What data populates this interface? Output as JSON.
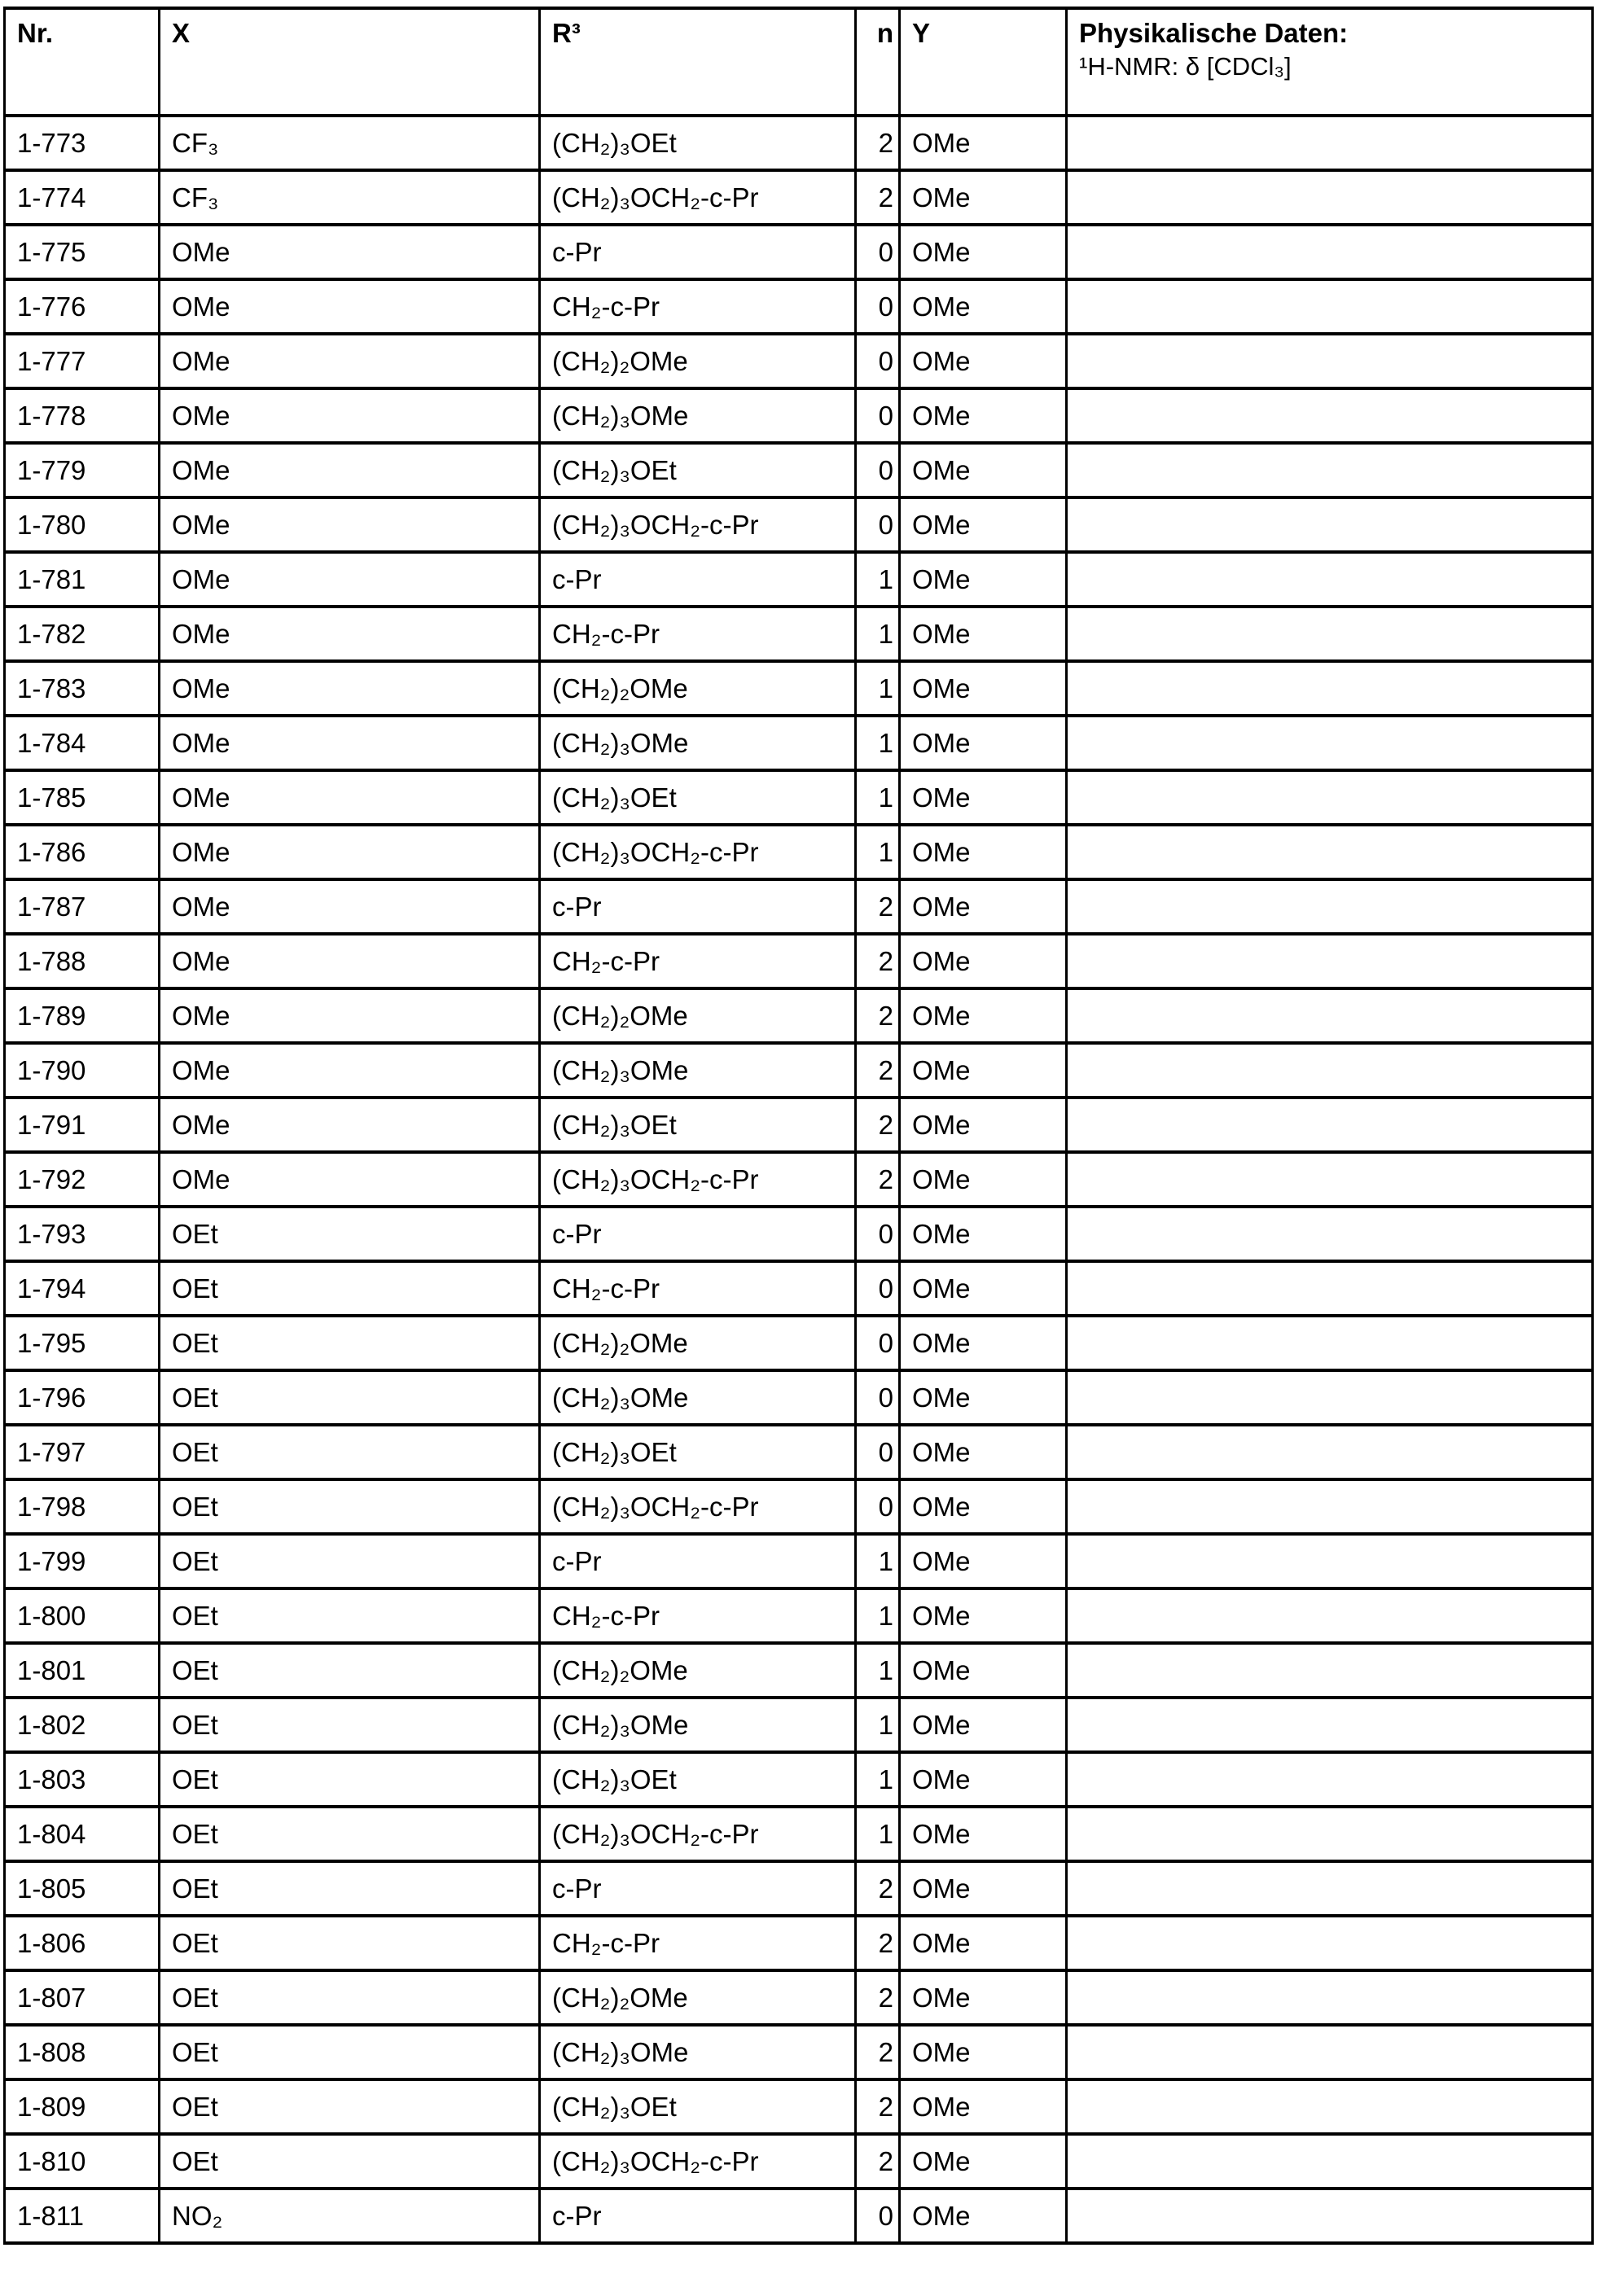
{
  "headers": {
    "nr": "Nr.",
    "x": "X",
    "r3": "R³",
    "n": "n",
    "y": "Y",
    "phys_title": "Physikalische Daten:",
    "phys_sub": "¹H-NMR: δ [CDCl₃]"
  },
  "rows": [
    {
      "nr": "1-773",
      "x": "CF₃",
      "r3": "(CH₂)₃OEt",
      "n": "2",
      "y": "OMe",
      "phys": ""
    },
    {
      "nr": "1-774",
      "x": "CF₃",
      "r3": "(CH₂)₃OCH₂-c-Pr",
      "n": "2",
      "y": "OMe",
      "phys": ""
    },
    {
      "nr": "1-775",
      "x": "OMe",
      "r3": "c-Pr",
      "n": "0",
      "y": "OMe",
      "phys": ""
    },
    {
      "nr": "1-776",
      "x": "OMe",
      "r3": "CH₂-c-Pr",
      "n": "0",
      "y": "OMe",
      "phys": ""
    },
    {
      "nr": "1-777",
      "x": "OMe",
      "r3": "(CH₂)₂OMe",
      "n": "0",
      "y": "OMe",
      "phys": ""
    },
    {
      "nr": "1-778",
      "x": "OMe",
      "r3": "(CH₂)₃OMe",
      "n": "0",
      "y": "OMe",
      "phys": ""
    },
    {
      "nr": "1-779",
      "x": "OMe",
      "r3": "(CH₂)₃OEt",
      "n": "0",
      "y": "OMe",
      "phys": ""
    },
    {
      "nr": "1-780",
      "x": "OMe",
      "r3": "(CH₂)₃OCH₂-c-Pr",
      "n": "0",
      "y": "OMe",
      "phys": ""
    },
    {
      "nr": "1-781",
      "x": "OMe",
      "r3": "c-Pr",
      "n": "1",
      "y": "OMe",
      "phys": ""
    },
    {
      "nr": "1-782",
      "x": "OMe",
      "r3": "CH₂-c-Pr",
      "n": "1",
      "y": "OMe",
      "phys": ""
    },
    {
      "nr": "1-783",
      "x": "OMe",
      "r3": "(CH₂)₂OMe",
      "n": "1",
      "y": "OMe",
      "phys": ""
    },
    {
      "nr": "1-784",
      "x": "OMe",
      "r3": "(CH₂)₃OMe",
      "n": "1",
      "y": "OMe",
      "phys": ""
    },
    {
      "nr": "1-785",
      "x": "OMe",
      "r3": "(CH₂)₃OEt",
      "n": "1",
      "y": "OMe",
      "phys": ""
    },
    {
      "nr": "1-786",
      "x": "OMe",
      "r3": "(CH₂)₃OCH₂-c-Pr",
      "n": "1",
      "y": "OMe",
      "phys": ""
    },
    {
      "nr": "1-787",
      "x": "OMe",
      "r3": "c-Pr",
      "n": "2",
      "y": "OMe",
      "phys": ""
    },
    {
      "nr": "1-788",
      "x": "OMe",
      "r3": "CH₂-c-Pr",
      "n": "2",
      "y": "OMe",
      "phys": ""
    },
    {
      "nr": "1-789",
      "x": "OMe",
      "r3": "(CH₂)₂OMe",
      "n": "2",
      "y": "OMe",
      "phys": ""
    },
    {
      "nr": "1-790",
      "x": "OMe",
      "r3": "(CH₂)₃OMe",
      "n": "2",
      "y": "OMe",
      "phys": ""
    },
    {
      "nr": "1-791",
      "x": "OMe",
      "r3": "(CH₂)₃OEt",
      "n": "2",
      "y": "OMe",
      "phys": ""
    },
    {
      "nr": "1-792",
      "x": "OMe",
      "r3": "(CH₂)₃OCH₂-c-Pr",
      "n": "2",
      "y": "OMe",
      "phys": ""
    },
    {
      "nr": "1-793",
      "x": "OEt",
      "r3": "c-Pr",
      "n": "0",
      "y": "OMe",
      "phys": ""
    },
    {
      "nr": "1-794",
      "x": "OEt",
      "r3": "CH₂-c-Pr",
      "n": "0",
      "y": "OMe",
      "phys": ""
    },
    {
      "nr": "1-795",
      "x": "OEt",
      "r3": "(CH₂)₂OMe",
      "n": "0",
      "y": "OMe",
      "phys": ""
    },
    {
      "nr": "1-796",
      "x": "OEt",
      "r3": "(CH₂)₃OMe",
      "n": "0",
      "y": "OMe",
      "phys": ""
    },
    {
      "nr": "1-797",
      "x": "OEt",
      "r3": "(CH₂)₃OEt",
      "n": "0",
      "y": "OMe",
      "phys": ""
    },
    {
      "nr": "1-798",
      "x": "OEt",
      "r3": "(CH₂)₃OCH₂-c-Pr",
      "n": "0",
      "y": "OMe",
      "phys": ""
    },
    {
      "nr": "1-799",
      "x": "OEt",
      "r3": "c-Pr",
      "n": "1",
      "y": "OMe",
      "phys": ""
    },
    {
      "nr": "1-800",
      "x": "OEt",
      "r3": "CH₂-c-Pr",
      "n": "1",
      "y": "OMe",
      "phys": ""
    },
    {
      "nr": "1-801",
      "x": "OEt",
      "r3": "(CH₂)₂OMe",
      "n": "1",
      "y": "OMe",
      "phys": ""
    },
    {
      "nr": "1-802",
      "x": "OEt",
      "r3": "(CH₂)₃OMe",
      "n": "1",
      "y": "OMe",
      "phys": ""
    },
    {
      "nr": "1-803",
      "x": "OEt",
      "r3": "(CH₂)₃OEt",
      "n": "1",
      "y": "OMe",
      "phys": ""
    },
    {
      "nr": "1-804",
      "x": "OEt",
      "r3": "(CH₂)₃OCH₂-c-Pr",
      "n": "1",
      "y": "OMe",
      "phys": ""
    },
    {
      "nr": "1-805",
      "x": "OEt",
      "r3": "c-Pr",
      "n": "2",
      "y": "OMe",
      "phys": ""
    },
    {
      "nr": "1-806",
      "x": "OEt",
      "r3": "CH₂-c-Pr",
      "n": "2",
      "y": "OMe",
      "phys": ""
    },
    {
      "nr": "1-807",
      "x": "OEt",
      "r3": "(CH₂)₂OMe",
      "n": "2",
      "y": "OMe",
      "phys": ""
    },
    {
      "nr": "1-808",
      "x": "OEt",
      "r3": "(CH₂)₃OMe",
      "n": "2",
      "y": "OMe",
      "phys": ""
    },
    {
      "nr": "1-809",
      "x": "OEt",
      "r3": "(CH₂)₃OEt",
      "n": "2",
      "y": "OMe",
      "phys": ""
    },
    {
      "nr": "1-810",
      "x": "OEt",
      "r3": "(CH₂)₃OCH₂-c-Pr",
      "n": "2",
      "y": "OMe",
      "phys": ""
    },
    {
      "nr": "1-811",
      "x": "NO₂",
      "r3": "c-Pr",
      "n": "0",
      "y": "OMe",
      "phys": ""
    }
  ]
}
